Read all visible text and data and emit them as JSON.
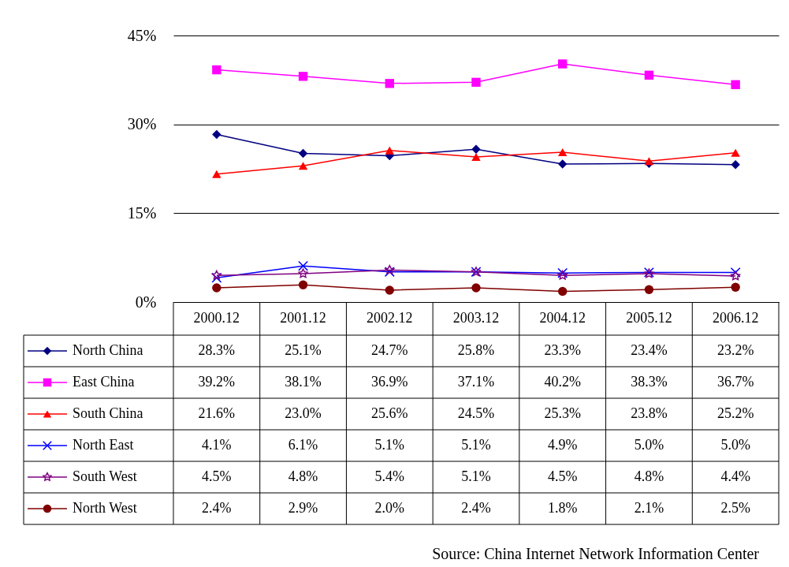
{
  "chart_data": {
    "type": "line",
    "categories": [
      "2000.12",
      "2001.12",
      "2002.12",
      "2003.12",
      "2004.12",
      "2005.12",
      "2006.12"
    ],
    "ylim": [
      0,
      45
    ],
    "yticks": [
      {
        "value": 0,
        "label": "0%"
      },
      {
        "value": 15,
        "label": "15%"
      },
      {
        "value": 30,
        "label": "30%"
      },
      {
        "value": 45,
        "label": "45%"
      }
    ],
    "grid": "y",
    "legend": "bottom",
    "line_style": "solid",
    "series": [
      {
        "name": "North China",
        "color": "#000080",
        "marker": "diamond",
        "values": [
          28.3,
          25.1,
          24.7,
          25.8,
          23.3,
          23.4,
          23.2
        ],
        "value_labels": [
          "28.3%",
          "25.1%",
          "24.7%",
          "25.8%",
          "23.3%",
          "23.4%",
          "23.2%"
        ]
      },
      {
        "name": "East China",
        "color": "#ff00ff",
        "marker": "square",
        "values": [
          39.2,
          38.1,
          36.9,
          37.1,
          40.2,
          38.3,
          36.7
        ],
        "value_labels": [
          "39.2%",
          "38.1%",
          "36.9%",
          "37.1%",
          "40.2%",
          "38.3%",
          "36.7%"
        ]
      },
      {
        "name": "South China",
        "color": "#ff0000",
        "marker": "triangle",
        "values": [
          21.6,
          23.0,
          25.6,
          24.5,
          25.3,
          23.8,
          25.2
        ],
        "value_labels": [
          "21.6%",
          "23.0%",
          "25.6%",
          "24.5%",
          "25.3%",
          "23.8%",
          "25.2%"
        ]
      },
      {
        "name": "North East",
        "color": "#0000ff",
        "marker": "cross",
        "values": [
          4.1,
          6.1,
          5.1,
          5.1,
          4.9,
          5.0,
          5.0
        ],
        "value_labels": [
          "4.1%",
          "6.1%",
          "5.1%",
          "5.1%",
          "4.9%",
          "5.0%",
          "5.0%"
        ]
      },
      {
        "name": "South West",
        "color": "#800080",
        "marker": "star",
        "values": [
          4.5,
          4.8,
          5.4,
          5.1,
          4.5,
          4.8,
          4.4
        ],
        "value_labels": [
          "4.5%",
          "4.8%",
          "5.4%",
          "5.1%",
          "4.5%",
          "4.8%",
          "4.4%"
        ]
      },
      {
        "name": "North West",
        "color": "#800000",
        "marker": "circle",
        "values": [
          2.4,
          2.9,
          2.0,
          2.4,
          1.8,
          2.1,
          2.5
        ],
        "value_labels": [
          "2.4%",
          "2.9%",
          "2.0%",
          "2.4%",
          "1.8%",
          "2.1%",
          "2.5%"
        ]
      }
    ],
    "annotations": [
      "Source: China Internet Network Information Center"
    ]
  }
}
